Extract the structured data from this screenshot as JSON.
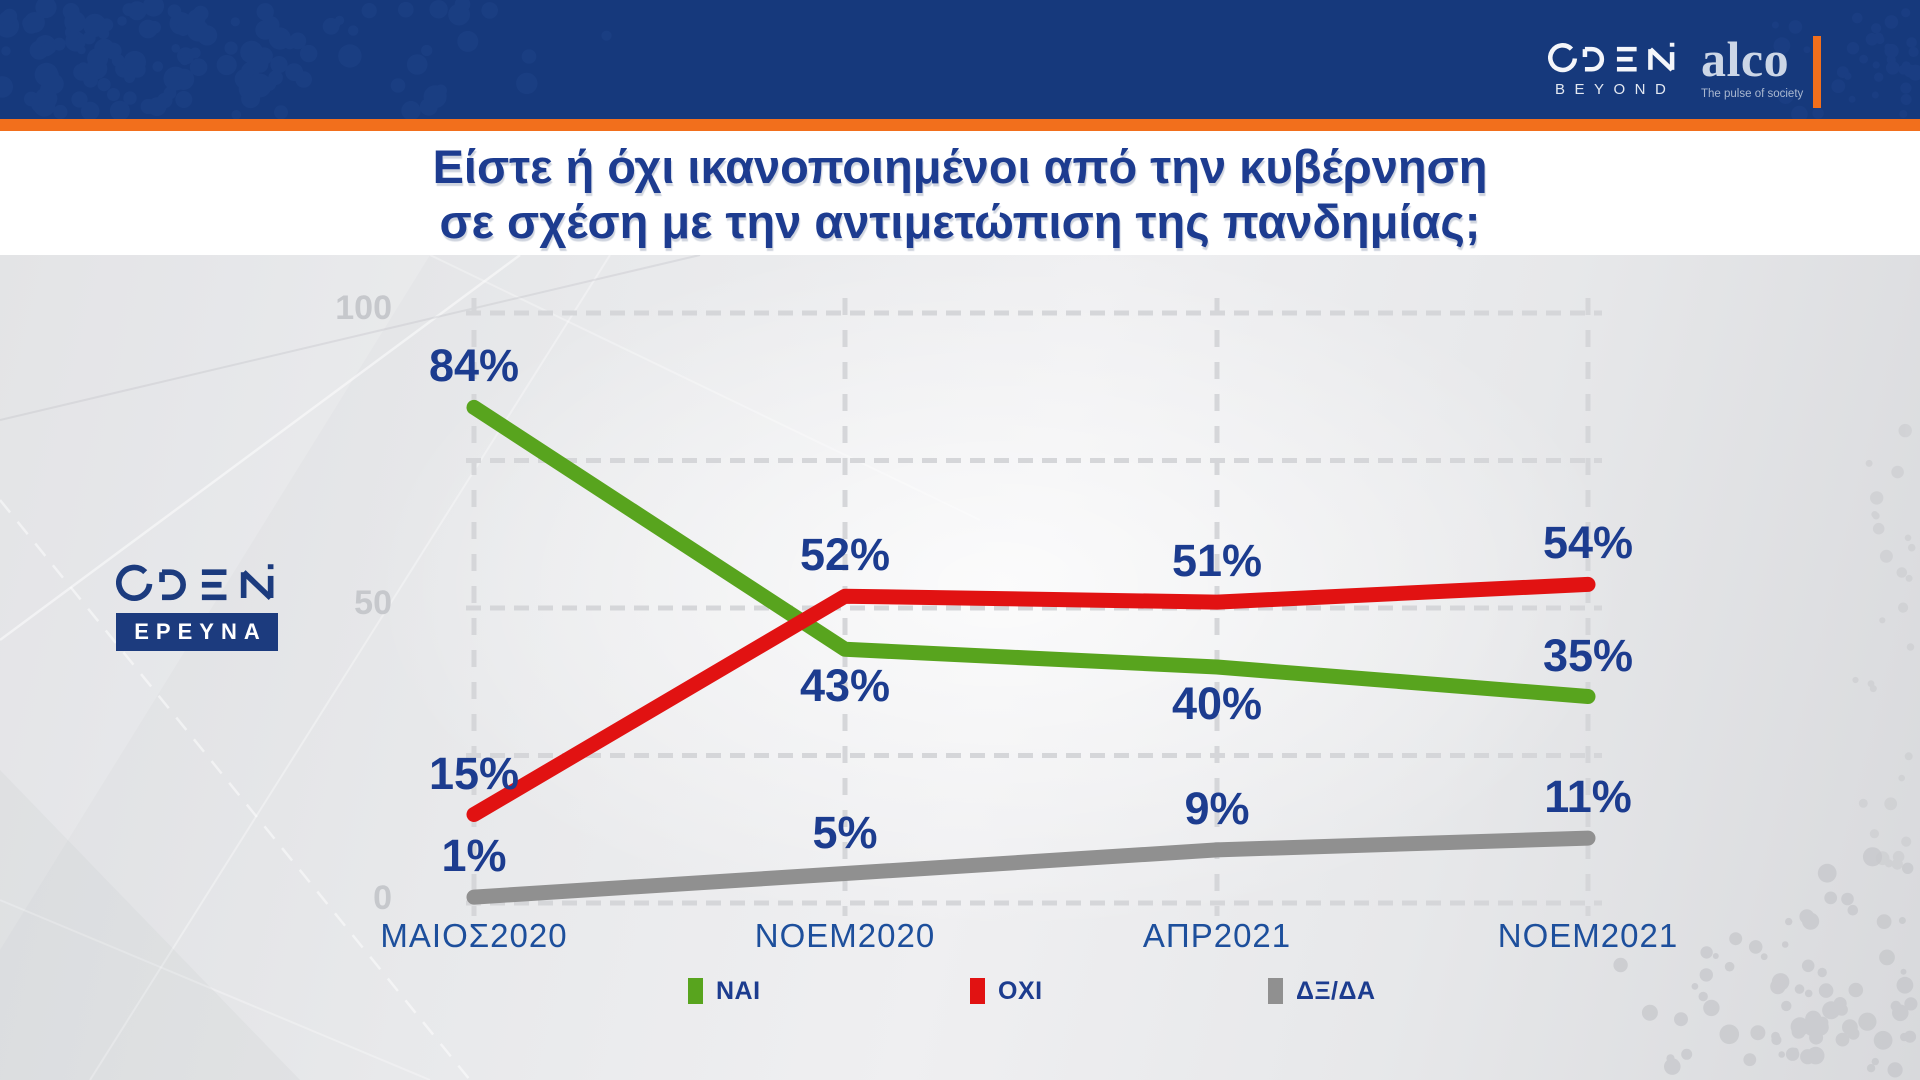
{
  "header": {
    "open_logo": {
      "brand": "OPEN",
      "tagline": "BEYOND"
    },
    "alco_logo": {
      "brand": "alco",
      "tagline": "The pulse of society"
    }
  },
  "title": {
    "line1": "Είστε ή όχι ικανοποιημένοι από την κυβέρνηση",
    "line2": "σε σχέση με την αντιμετώπιση της πανδημίας;"
  },
  "side_logo": {
    "brand": "OPEN",
    "badge": "ΕΡΕΥΝΑ"
  },
  "colors": {
    "header_bg": "#16397c",
    "accent_orange": "#f26f1c",
    "title_blue": "#1d3c90",
    "value_label_navy": "#1c3c8f",
    "x_label_blue": "#1d4f9c",
    "y_tick_gray": "#c6c8cc",
    "gridline_gray": "#d5d6d9"
  },
  "chart_data": {
    "type": "line",
    "title": "Είστε ή όχι ικανοποιημένοι από την κυβέρνηση σε σχέση με την αντιμετώπιση της πανδημίας;",
    "categories": [
      "ΜΑΙΟΣ2020",
      "ΝΟΕΜ2020",
      "ΑΠΡ2021",
      "ΝΟΕΜ2021"
    ],
    "series": [
      {
        "name": "ΝΑΙ",
        "color": "#58a41e",
        "values": [
          84,
          43,
          40,
          35
        ],
        "label_side": [
          "above",
          "below",
          "below",
          "above"
        ]
      },
      {
        "name": "ΟΧΙ",
        "color": "#e11212",
        "values": [
          15,
          52,
          51,
          54
        ],
        "label_side": [
          "above",
          "above",
          "above",
          "above"
        ]
      },
      {
        "name": "ΔΞ/ΔΑ",
        "color": "#909090",
        "values": [
          1,
          5,
          9,
          11
        ],
        "label_side": [
          "above",
          "above",
          "above",
          "above"
        ]
      }
    ],
    "value_suffix": "%",
    "yticks": [
      0,
      50,
      100
    ],
    "ylim": [
      0,
      100
    ],
    "grid": true,
    "gridlines_pct": [
      0,
      25,
      50,
      75,
      100
    ],
    "legend_position": "bottom",
    "draw_order": [
      2,
      0,
      1
    ]
  }
}
